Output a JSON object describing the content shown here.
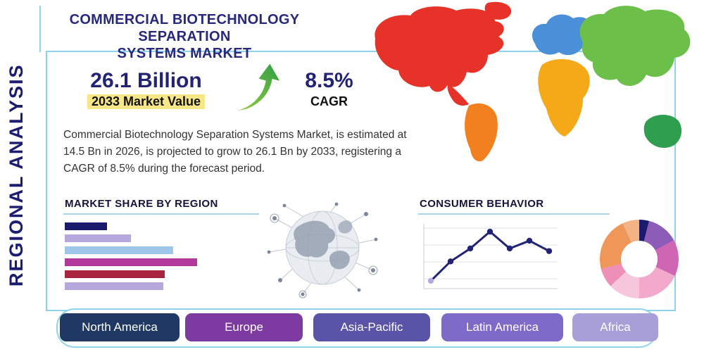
{
  "title": {
    "line1": "COMMERCIAL BIOTECHNOLOGY SEPARATION",
    "line2": "SYSTEMS MARKET"
  },
  "side_label": "REGIONAL ANALYSIS",
  "stats": {
    "market_value": "26.1 Billion",
    "market_value_label": "2033 Market Value",
    "cagr_value": "8.5%",
    "cagr_label": "CAGR"
  },
  "description": "Commercial Biotechnology Separation Systems Market, is estimated at 14.5 Bn in 2026, is projected to grow to 26.1 Bn by 2033, registering a CAGR of 8.5% during the forecast period.",
  "section_headings": {
    "market_share": "MARKET SHARE BY REGION",
    "consumer_behavior": "CONSUMER BEHAVIOR"
  },
  "regions": [
    {
      "label": "North America",
      "color": "#1f3864"
    },
    {
      "label": "Europe",
      "color": "#7d3aa0"
    },
    {
      "label": "Asia-Pacific",
      "color": "#5a54a8"
    },
    {
      "label": "Latin America",
      "color": "#7e6bc9"
    },
    {
      "label": "Africa",
      "color": "#a89fd8"
    }
  ],
  "map": {
    "colors": {
      "north-america": "#e63228",
      "greenland": "#e63228",
      "south-america": "#f2801e",
      "europe": "#4a90d9",
      "africa": "#f5a818",
      "asia": "#6cc04a",
      "australia": "#2f9e4f"
    }
  },
  "chart_data": [
    {
      "name": "market-share-by-region",
      "type": "bar",
      "orientation": "horizontal",
      "title": "MARKET SHARE BY REGION",
      "values_pct": [
        30,
        47,
        77,
        94,
        71,
        70
      ],
      "colors": [
        "#1b1b6e",
        "#b6a8dc",
        "#9fc5e8",
        "#b0399b",
        "#a8243f",
        "#b6a8dc"
      ],
      "axis_labels": "none"
    },
    {
      "name": "consumer-behavior",
      "type": "line",
      "title": "CONSUMER BEHAVIOR",
      "x": [
        1,
        2,
        3,
        4,
        5,
        6,
        7
      ],
      "values": [
        12,
        42,
        62,
        88,
        62,
        74,
        58
      ],
      "line_color": "#232375",
      "first_point_color": "#b9a7e0",
      "grid": true
    },
    {
      "name": "regional-share-donut",
      "type": "pie",
      "donut": true,
      "slices": [
        {
          "value": 4,
          "color": "#1b1b6e"
        },
        {
          "value": 13,
          "color": "#8d5bb8"
        },
        {
          "value": 15,
          "color": "#cf66b4"
        },
        {
          "value": 18,
          "color": "#f2a9cc"
        },
        {
          "value": 13,
          "color": "#f6c6dc"
        },
        {
          "value": 8,
          "color": "#ee8fb8"
        },
        {
          "value": 22,
          "color": "#ef9659"
        },
        {
          "value": 7,
          "color": "#f4b285"
        }
      ]
    }
  ]
}
